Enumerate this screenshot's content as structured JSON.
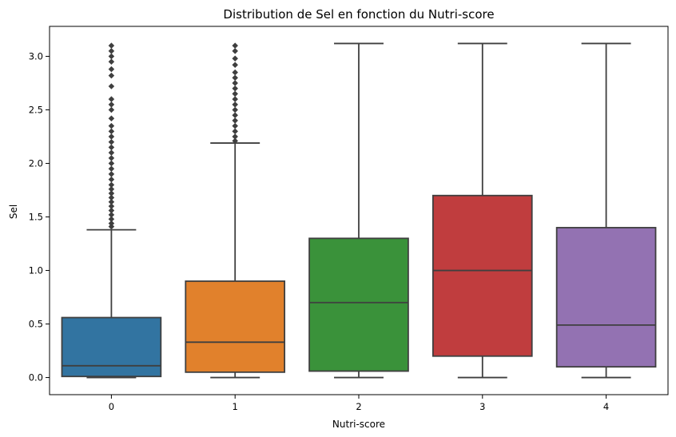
{
  "chart_data": {
    "type": "box",
    "title": "Distribution de Sel en fonction du Nutri-score",
    "xlabel": "Nutri-score",
    "ylabel": "Sel",
    "categories": [
      "0",
      "1",
      "2",
      "3",
      "4"
    ],
    "ylim": [
      -0.16,
      3.28
    ],
    "yticks": [
      0.0,
      0.5,
      1.0,
      1.5,
      2.0,
      2.5,
      3.0
    ],
    "ytick_labels": [
      "0.0",
      "0.5",
      "1.0",
      "1.5",
      "2.0",
      "2.5",
      "3.0"
    ],
    "grid": false,
    "legend": "none",
    "series": [
      {
        "category": "0",
        "color": "#3274a1",
        "whisker_low": 0.0,
        "q1": 0.01,
        "median": 0.11,
        "q3": 0.56,
        "whisker_high": 1.38,
        "outliers": [
          1.41,
          1.44,
          1.48,
          1.52,
          1.56,
          1.6,
          1.64,
          1.68,
          1.72,
          1.76,
          1.8,
          1.85,
          1.9,
          1.95,
          2.0,
          2.05,
          2.1,
          2.15,
          2.2,
          2.25,
          2.3,
          2.35,
          2.42,
          2.5,
          2.55,
          2.6,
          2.72,
          2.82,
          2.88,
          2.95,
          3.0,
          3.05,
          3.1
        ]
      },
      {
        "category": "1",
        "color": "#e1812c",
        "whisker_low": 0.0,
        "q1": 0.05,
        "median": 0.33,
        "q3": 0.9,
        "whisker_high": 2.19,
        "outliers": [
          2.21,
          2.25,
          2.3,
          2.35,
          2.4,
          2.45,
          2.5,
          2.55,
          2.6,
          2.65,
          2.7,
          2.75,
          2.8,
          2.85,
          2.92,
          2.98,
          3.05,
          3.1
        ]
      },
      {
        "category": "2",
        "color": "#3a923a",
        "whisker_low": 0.0,
        "q1": 0.06,
        "median": 0.7,
        "q3": 1.3,
        "whisker_high": 3.12,
        "outliers": []
      },
      {
        "category": "3",
        "color": "#c03d3e",
        "whisker_low": 0.0,
        "q1": 0.2,
        "median": 1.0,
        "q3": 1.7,
        "whisker_high": 3.12,
        "outliers": []
      },
      {
        "category": "4",
        "color": "#9372b2",
        "whisker_low": 0.0,
        "q1": 0.1,
        "median": 0.49,
        "q3": 1.4,
        "whisker_high": 3.12,
        "outliers": []
      }
    ]
  }
}
